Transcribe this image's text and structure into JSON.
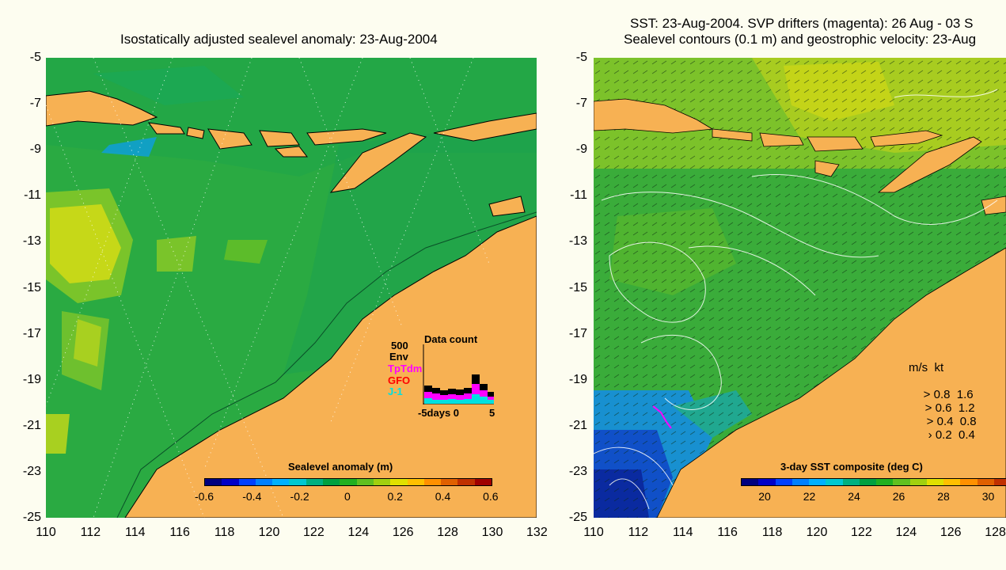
{
  "left": {
    "title": "Isostatically adjusted sealevel anomaly: 23-Aug-2004",
    "colorbar": {
      "label": "Sealevel anomaly (m)",
      "ticks": [
        "-0.6",
        "-0.4",
        "-0.2",
        "0",
        "0.2",
        "0.4",
        "0.6"
      ],
      "colors": [
        "#00007f",
        "#0000c8",
        "#0040ff",
        "#0080ff",
        "#00b0ff",
        "#00c8d0",
        "#00b080",
        "#00a040",
        "#20b020",
        "#60c020",
        "#a0d010",
        "#e0e000",
        "#ffc000",
        "#ff9000",
        "#e06000",
        "#c03000",
        "#a00000"
      ]
    },
    "inset": {
      "title": "Data count",
      "ymax": "500",
      "legend": [
        "Env",
        "TpTdm",
        "GFO",
        "J-1"
      ],
      "legend_colors": [
        "#000000",
        "#ff00ff",
        "#ff0000",
        "#00e0e0"
      ],
      "xlabel": "-5days 0",
      "xmax": "5"
    }
  },
  "right": {
    "title_line1": "SST: 23-Aug-2004. SVP drifters (magenta): 26 Aug - 03 S",
    "title_line2": "Sealevel contours (0.1 m) and geostrophic velocity: 23-Aug",
    "colorbar": {
      "label": "3-day SST composite (deg C)",
      "ticks": [
        "20",
        "22",
        "24",
        "26",
        "28",
        "30"
      ],
      "colors": [
        "#00007f",
        "#0000c8",
        "#0040ff",
        "#0080ff",
        "#00b0ff",
        "#00c8d0",
        "#00b080",
        "#00a040",
        "#20b020",
        "#60c020",
        "#a0d010",
        "#e0e000",
        "#ffc000",
        "#ff9000",
        "#e06000",
        "#c03000"
      ]
    },
    "speed_legend": {
      "header": "m/s  kt",
      "rows": [
        "0.8  1.6",
        "0.6  1.2",
        "0.4  0.8",
        "0.2  0.4"
      ]
    }
  },
  "yticks": [
    "-5",
    "-7",
    "-9",
    "-11",
    "-13",
    "-15",
    "-17",
    "-19",
    "-21",
    "-23",
    "-25"
  ],
  "xticks_left": [
    "110",
    "112",
    "114",
    "116",
    "118",
    "120",
    "122",
    "124",
    "126",
    "128",
    "130",
    "132"
  ],
  "xticks_right": [
    "110",
    "112",
    "114",
    "116",
    "118",
    "120",
    "122",
    "124",
    "126",
    "128"
  ],
  "colors": {
    "land": "#f7b153",
    "ocean_base": "#2aaa42",
    "background": "#fdfdf0"
  }
}
